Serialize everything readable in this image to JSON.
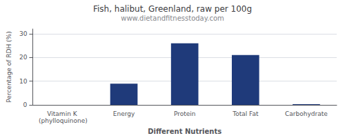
{
  "chart_data": {
    "type": "bar",
    "title": "Fish, halibut, Greenland, raw per 100g",
    "subtitle": "www.dietandfitnesstoday.com",
    "xlabel": "Different Nutrients",
    "ylabel": "Percentage of RDH (%)",
    "categories": [
      "Vitamin K (phylloquinone)",
      "Energy",
      "Protein",
      "Total Fat",
      "Carbohydrate"
    ],
    "values": [
      0,
      9,
      26,
      21,
      0.3
    ],
    "color": "#1F3A7A",
    "ylim": [
      0,
      32
    ],
    "yticks": [
      0,
      10,
      20,
      30
    ],
    "grid": true
  }
}
